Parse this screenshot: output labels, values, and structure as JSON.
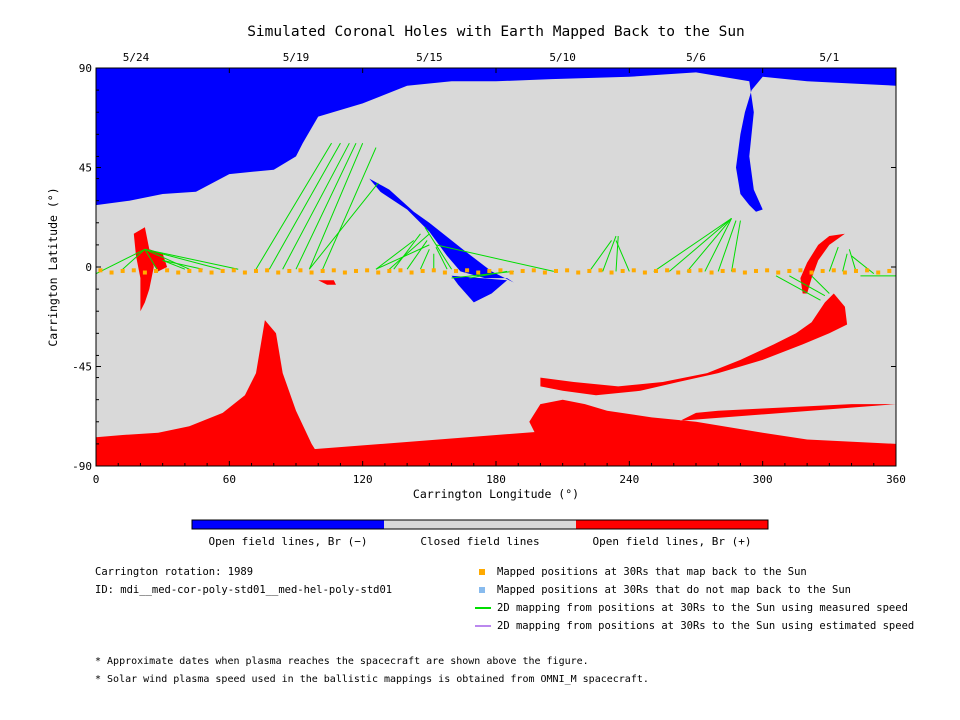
{
  "chart_data": {
    "type": "map",
    "title": "Simulated Coronal Holes with Earth Mapped Back to the Sun",
    "xlabel": "Carrington Longitude (°)",
    "ylabel": "Carrington Latitude (°)",
    "xlim": [
      0,
      360
    ],
    "ylim": [
      -90,
      90
    ],
    "x_ticks": [
      "0",
      "60",
      "120",
      "180",
      "240",
      "300",
      "360"
    ],
    "x_tick_values": [
      0,
      60,
      120,
      180,
      240,
      300,
      360
    ],
    "y_ticks": [
      "90",
      "45",
      "0",
      "-45",
      "-90"
    ],
    "y_tick_values": [
      90,
      45,
      0,
      -45,
      -90
    ],
    "top_dates": [
      {
        "label": "5/24",
        "lon": 18
      },
      {
        "label": "5/19",
        "lon": 90
      },
      {
        "label": "5/15",
        "lon": 150
      },
      {
        "label": "5/10",
        "lon": 210
      },
      {
        "label": "5/6",
        "lon": 270
      },
      {
        "label": "5/1",
        "lon": 330
      }
    ],
    "colors": {
      "open_negative": "#0000ff",
      "closed": "#d9d9d9",
      "open_positive": "#ff0000",
      "measured": "#00dd00",
      "estimated": "#bb88ee",
      "mapped": "#ffaa00",
      "not_mapped": "#88bbee"
    },
    "regions": {
      "north_negative": [
        [
          0,
          90
        ],
        [
          360,
          90
        ],
        [
          360,
          82
        ],
        [
          340,
          83
        ],
        [
          320,
          84
        ],
        [
          300,
          86
        ],
        [
          295,
          80
        ],
        [
          292,
          70
        ],
        [
          290,
          60
        ],
        [
          288,
          45
        ],
        [
          290,
          33
        ],
        [
          294,
          28
        ],
        [
          297,
          25
        ],
        [
          300,
          26
        ],
        [
          296,
          35
        ],
        [
          294,
          50
        ],
        [
          296,
          70
        ],
        [
          294,
          84
        ],
        [
          270,
          88
        ],
        [
          240,
          86
        ],
        [
          205,
          85
        ],
        [
          180,
          84
        ],
        [
          160,
          84
        ],
        [
          140,
          82
        ],
        [
          120,
          74
        ],
        [
          100,
          68
        ],
        [
          93,
          56
        ],
        [
          90,
          50
        ],
        [
          80,
          44
        ],
        [
          60,
          42
        ],
        [
          45,
          34
        ],
        [
          30,
          33
        ],
        [
          15,
          30
        ],
        [
          0,
          28
        ]
      ],
      "north_negative_tongue": [
        [
          123,
          40
        ],
        [
          132,
          35
        ],
        [
          143,
          25
        ],
        [
          150,
          20
        ],
        [
          165,
          8
        ],
        [
          178,
          -2
        ],
        [
          188,
          -7
        ],
        [
          185,
          -5
        ],
        [
          175,
          -5
        ],
        [
          164,
          -2
        ],
        [
          158,
          5
        ],
        [
          150,
          16
        ],
        [
          140,
          26
        ],
        [
          128,
          34
        ]
      ],
      "north_negative_patch": [
        [
          160,
          -4
        ],
        [
          185,
          -6
        ],
        [
          178,
          -12
        ],
        [
          170,
          -16
        ],
        [
          163,
          -8
        ]
      ],
      "south_positive": [
        [
          0,
          -90
        ],
        [
          360,
          -90
        ],
        [
          360,
          -80
        ],
        [
          320,
          -78
        ],
        [
          300,
          -75
        ],
        [
          270,
          -70
        ],
        [
          250,
          -68
        ],
        [
          230,
          -65
        ],
        [
          220,
          -62
        ],
        [
          210,
          -60
        ],
        [
          200,
          -62
        ],
        [
          195,
          -70
        ],
        [
          200,
          -80
        ],
        [
          210,
          -90
        ],
        [
          220,
          -90
        ],
        [
          225,
          -82
        ],
        [
          235,
          -78
        ],
        [
          250,
          -76
        ],
        [
          262,
          -70
        ],
        [
          270,
          -66
        ],
        [
          280,
          -65
        ],
        [
          300,
          -64
        ],
        [
          340,
          -62
        ],
        [
          360,
          -62
        ]
      ],
      "south_positive_west": [
        [
          0,
          -90
        ],
        [
          110,
          -90
        ],
        [
          102,
          -88
        ],
        [
          97,
          -80
        ],
        [
          90,
          -65
        ],
        [
          84,
          -48
        ],
        [
          81,
          -30
        ],
        [
          76,
          -24
        ],
        [
          72,
          -48
        ],
        [
          67,
          -58
        ],
        [
          57,
          -66
        ],
        [
          42,
          -72
        ],
        [
          28,
          -75
        ],
        [
          12,
          -76
        ],
        [
          0,
          -77
        ]
      ],
      "south_positive_ribbon": [
        [
          200,
          -50
        ],
        [
          215,
          -52
        ],
        [
          235,
          -54
        ],
        [
          255,
          -52
        ],
        [
          275,
          -48
        ],
        [
          290,
          -42
        ],
        [
          305,
          -35
        ],
        [
          315,
          -30
        ],
        [
          322,
          -25
        ],
        [
          328,
          -16
        ],
        [
          332,
          -12
        ],
        [
          337,
          -18
        ],
        [
          338,
          -26
        ],
        [
          330,
          -30
        ],
        [
          318,
          -35
        ],
        [
          300,
          -42
        ],
        [
          280,
          -48
        ],
        [
          262,
          -52
        ],
        [
          245,
          -56
        ],
        [
          225,
          -58
        ],
        [
          210,
          -56
        ],
        [
          200,
          -54
        ]
      ],
      "east_positive_arc": [
        [
          317,
          -5
        ],
        [
          320,
          2
        ],
        [
          325,
          10
        ],
        [
          330,
          14
        ],
        [
          337,
          15
        ],
        [
          330,
          10
        ],
        [
          325,
          3
        ],
        [
          322,
          -5
        ],
        [
          320,
          -12
        ],
        [
          318,
          -12
        ]
      ],
      "west_positive_strip": [
        [
          17,
          15
        ],
        [
          22,
          18
        ],
        [
          24,
          8
        ],
        [
          26,
          0
        ],
        [
          24,
          -10
        ],
        [
          22,
          -16
        ],
        [
          20,
          -20
        ],
        [
          20,
          -5
        ],
        [
          18,
          5
        ]
      ],
      "west_positive_patch": [
        [
          100,
          -6
        ],
        [
          107,
          -6
        ],
        [
          108,
          -8
        ],
        [
          104,
          -8
        ]
      ],
      "west_positive_curl": [
        [
          24,
          8
        ],
        [
          30,
          6
        ],
        [
          32,
          0
        ],
        [
          28,
          -2
        ],
        [
          25,
          2
        ]
      ]
    },
    "mapped_points_lon": [
      2,
      7,
      12,
      17,
      22,
      27,
      32,
      37,
      42,
      47,
      52,
      57,
      62,
      67,
      72,
      77,
      82,
      87,
      92,
      97,
      102,
      107,
      112,
      117,
      122,
      127,
      132,
      137,
      142,
      147,
      152,
      157,
      162,
      167,
      172,
      177,
      182,
      187,
      192,
      197,
      202,
      207,
      212,
      217,
      222,
      227,
      232,
      237,
      242,
      247,
      252,
      257,
      262,
      267,
      272,
      277,
      282,
      287,
      292,
      297,
      302,
      307,
      312,
      317,
      322,
      327,
      332,
      337,
      342,
      347,
      352,
      357
    ],
    "mapping_lines_measured": [
      [
        [
          0,
          -3
        ],
        [
          22,
          8
        ]
      ],
      [
        [
          12,
          -1
        ],
        [
          22,
          8
        ]
      ],
      [
        [
          28,
          -2
        ],
        [
          22,
          8
        ]
      ],
      [
        [
          42,
          -1
        ],
        [
          22,
          8
        ]
      ],
      [
        [
          56,
          -1
        ],
        [
          22,
          8
        ]
      ],
      [
        [
          64,
          -1
        ],
        [
          22,
          8
        ]
      ],
      [
        [
          40,
          -1
        ],
        [
          30,
          3
        ]
      ],
      [
        [
          48,
          -1
        ],
        [
          30,
          3
        ]
      ],
      [
        [
          72,
          -1
        ],
        [
          106,
          56
        ]
      ],
      [
        [
          78,
          -1
        ],
        [
          110,
          56
        ]
      ],
      [
        [
          84,
          -1
        ],
        [
          114,
          56
        ]
      ],
      [
        [
          90,
          -1
        ],
        [
          117,
          56
        ]
      ],
      [
        [
          96,
          -1
        ],
        [
          120,
          56
        ]
      ],
      [
        [
          102,
          -1
        ],
        [
          126,
          54
        ]
      ],
      [
        [
          96,
          -1
        ],
        [
          127,
          38
        ]
      ],
      [
        [
          126,
          -1
        ],
        [
          143,
          12
        ]
      ],
      [
        [
          134,
          -1
        ],
        [
          146,
          15
        ]
      ],
      [
        [
          140,
          -1
        ],
        [
          149,
          12
        ]
      ],
      [
        [
          146,
          -1
        ],
        [
          150,
          8
        ]
      ],
      [
        [
          152,
          -1
        ],
        [
          152,
          6
        ]
      ],
      [
        [
          158,
          -1
        ],
        [
          153,
          9
        ]
      ],
      [
        [
          126,
          -1
        ],
        [
          150,
          10
        ]
      ],
      [
        [
          132,
          -1
        ],
        [
          150,
          15
        ]
      ],
      [
        [
          160,
          -1
        ],
        [
          148,
          18
        ]
      ],
      [
        [
          206,
          -2
        ],
        [
          153,
          10
        ]
      ],
      [
        [
          188,
          -2
        ],
        [
          160,
          -5
        ]
      ],
      [
        [
          168,
          -5
        ],
        [
          185,
          -2
        ]
      ],
      [
        [
          222,
          -2
        ],
        [
          232,
          12
        ]
      ],
      [
        [
          228,
          -2
        ],
        [
          234,
          14
        ]
      ],
      [
        [
          234,
          -2
        ],
        [
          235,
          14
        ]
      ],
      [
        [
          240,
          -2
        ],
        [
          234,
          12
        ]
      ],
      [
        [
          251,
          -2
        ],
        [
          286,
          22
        ]
      ],
      [
        [
          258,
          -2
        ],
        [
          286,
          22
        ]
      ],
      [
        [
          266,
          -2
        ],
        [
          286,
          22
        ]
      ],
      [
        [
          274,
          -2
        ],
        [
          286,
          22
        ]
      ],
      [
        [
          280,
          -2
        ],
        [
          288,
          21
        ]
      ],
      [
        [
          286,
          -2
        ],
        [
          290,
          21
        ]
      ],
      [
        [
          306,
          -4
        ],
        [
          326,
          -15
        ]
      ],
      [
        [
          312,
          -4
        ],
        [
          328,
          -13
        ]
      ],
      [
        [
          322,
          -4
        ],
        [
          330,
          -12
        ]
      ],
      [
        [
          330,
          -2
        ],
        [
          334,
          9
        ]
      ],
      [
        [
          336,
          -2
        ],
        [
          338,
          6
        ]
      ],
      [
        [
          342,
          -2
        ],
        [
          339,
          8
        ]
      ],
      [
        [
          350,
          -3
        ],
        [
          340,
          5
        ]
      ],
      [
        [
          360,
          -4
        ],
        [
          344,
          -4
        ]
      ]
    ]
  },
  "legend": {
    "colorbar": [
      {
        "label": "Open field lines, Br (−)",
        "color": "#0000ff"
      },
      {
        "label": "Closed field lines",
        "color": "#d9d9d9"
      },
      {
        "label": "Open field lines, Br (+)",
        "color": "#ff0000"
      }
    ],
    "items": [
      {
        "label": "Mapped positions at 30Rs that map back to the Sun",
        "icon": "orange-square-icon",
        "color": "#ffaa00"
      },
      {
        "label": "Mapped positions at 30Rs that do not map back to the Sun",
        "icon": "lightblue-square-icon",
        "color": "#88bbee"
      },
      {
        "label": "2D mapping from positions at 30Rs to the Sun using measured speed",
        "icon": "green-line-icon",
        "color": "#00dd00"
      },
      {
        "label": "2D mapping from positions at 30Rs to the Sun using estimated speed",
        "icon": "purple-line-icon",
        "color": "#bb88ee"
      }
    ]
  },
  "info": {
    "rotation": "Carrington rotation: 1989",
    "id": "ID: mdi__med-cor-poly-std01__med-hel-poly-std01"
  },
  "footnotes": [
    "* Approximate dates when plasma reaches the spacecraft are shown above the figure.",
    "* Solar wind plasma speed used in the ballistic mappings is obtained from OMNI_M spacecraft."
  ]
}
